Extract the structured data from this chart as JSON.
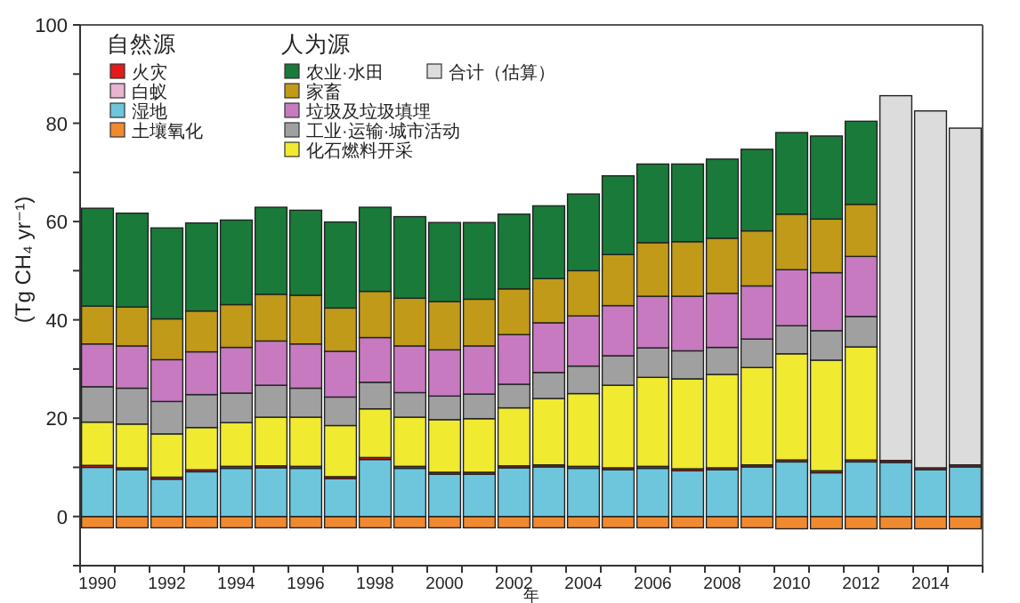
{
  "chart_data": {
    "type": "bar",
    "stacked": true,
    "xlabel": "年",
    "ylabel": "(Tg CH₄ yr⁻¹)",
    "categories": [
      "1990",
      null,
      "1992",
      null,
      "1994",
      null,
      "1996",
      null,
      "1998",
      null,
      "2000",
      null,
      "2002",
      null,
      "2004",
      null,
      "2006",
      null,
      "2008",
      null,
      "2010",
      null,
      "2012",
      null,
      "2014",
      null
    ],
    "ylim": [
      -10,
      100
    ],
    "yticks": [
      {
        "value": -10,
        "label": null
      },
      0,
      {
        "value": 10,
        "label": null
      },
      20,
      {
        "value": 30,
        "label": null
      },
      40,
      {
        "value": 50,
        "label": null
      },
      60,
      {
        "value": 70,
        "label": null
      },
      80,
      {
        "value": 90,
        "label": null
      },
      100
    ],
    "legend": "top left",
    "annotations": [
      "自然源",
      "人为源"
    ],
    "series": [
      {
        "name": "土壤氧化",
        "color": "#f08a30",
        "values": [
          -2.3,
          -2.3,
          -2.3,
          -2.3,
          -2.3,
          -2.3,
          -2.3,
          -2.3,
          -2.3,
          -2.3,
          -2.3,
          -2.3,
          -2.3,
          -2.3,
          -2.3,
          -2.3,
          -2.3,
          -2.3,
          -2.3,
          -2.3,
          -2.5,
          -2.5,
          -2.5,
          -2.5,
          -2.5,
          -2.5
        ]
      },
      {
        "name": "湿地",
        "color": "#6ec6dc",
        "values": [
          10.0,
          9.5,
          7.6,
          9.1,
          9.8,
          9.9,
          9.8,
          7.7,
          11.6,
          9.8,
          8.6,
          8.6,
          9.9,
          10.1,
          9.8,
          9.5,
          9.8,
          9.3,
          9.5,
          10.1,
          11.1,
          8.9,
          11.1,
          11.0,
          9.5,
          10.1
        ]
      },
      {
        "name": "火灾",
        "color": "#e31a1c",
        "values": [
          0.4,
          0.4,
          0.4,
          0.4,
          0.4,
          0.4,
          0.4,
          0.4,
          0.4,
          0.4,
          0.4,
          0.4,
          0.4,
          0.4,
          0.4,
          0.4,
          0.4,
          0.4,
          0.4,
          0.4,
          0.4,
          0.4,
          0.4,
          0.4,
          0.4,
          0.4
        ]
      },
      {
        "name": "白蚁",
        "color": "#e8b4d0",
        "values": [
          0,
          0,
          0,
          0,
          0,
          0,
          0,
          0,
          0,
          0,
          0,
          0,
          0,
          0,
          0,
          0,
          0,
          0,
          0,
          0,
          0,
          0,
          0,
          0,
          0,
          0
        ]
      },
      {
        "name": "化石燃料开采",
        "color": "#f0ea30",
        "values": [
          8.8,
          8.9,
          8.8,
          8.6,
          8.9,
          9.9,
          10.0,
          10.4,
          9.9,
          10.0,
          10.7,
          10.9,
          11.8,
          13.5,
          14.8,
          16.8,
          18.1,
          18.3,
          19.0,
          19.8,
          21.6,
          22.5,
          23.0,
          null,
          null,
          null
        ]
      },
      {
        "name": "工业·运输·城市活动",
        "color": "#a0a0a0",
        "values": [
          7.2,
          7.3,
          6.6,
          6.7,
          6.0,
          6.5,
          5.9,
          5.8,
          5.4,
          5.0,
          4.8,
          5.0,
          4.8,
          5.3,
          5.6,
          6.0,
          6.0,
          5.7,
          5.5,
          5.8,
          5.7,
          6.0,
          6.2,
          null,
          null,
          null
        ]
      },
      {
        "name": "垃圾及垃圾填埋",
        "color": "#c77ac0",
        "values": [
          8.7,
          8.6,
          8.5,
          8.7,
          9.3,
          9.0,
          9.0,
          9.3,
          9.1,
          9.5,
          9.4,
          9.8,
          10.1,
          10.1,
          10.2,
          10.2,
          10.5,
          11.1,
          11.0,
          10.8,
          11.4,
          11.8,
          12.2,
          null,
          null,
          null
        ]
      },
      {
        "name": "家畜",
        "color": "#c09a18",
        "values": [
          7.7,
          7.9,
          8.3,
          8.3,
          8.7,
          9.5,
          9.9,
          8.8,
          9.4,
          9.7,
          9.8,
          9.5,
          9.3,
          9.0,
          9.2,
          10.4,
          10.9,
          11.1,
          11.2,
          11.2,
          11.3,
          10.9,
          10.6,
          null,
          null,
          null
        ]
      },
      {
        "name": "农业·水田",
        "color": "#1a7a3a",
        "values": [
          19.9,
          19.1,
          18.5,
          17.9,
          17.2,
          17.7,
          17.3,
          17.5,
          17.1,
          16.6,
          16.1,
          15.6,
          15.2,
          14.8,
          15.6,
          16.0,
          16.0,
          15.8,
          16.1,
          16.6,
          16.6,
          16.9,
          16.9,
          null,
          null,
          null
        ]
      },
      {
        "name": "合计（估算）",
        "color": "#dcdcdc",
        "values": [
          null,
          null,
          null,
          null,
          null,
          null,
          null,
          null,
          null,
          null,
          null,
          null,
          null,
          null,
          null,
          null,
          null,
          null,
          null,
          null,
          null,
          null,
          null,
          74.2,
          72.6,
          68.5
        ]
      }
    ]
  }
}
